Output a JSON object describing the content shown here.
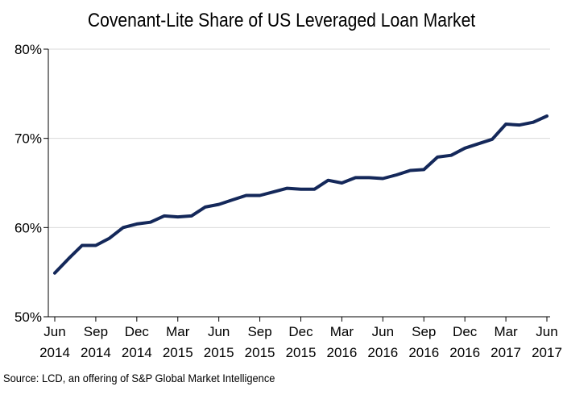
{
  "chart_data": {
    "type": "line",
    "title": "Covenant-Lite Share of US Leveraged Loan Market",
    "ylim": [
      50,
      80
    ],
    "y_ticks": [
      "50%",
      "60%",
      "70%",
      "80%"
    ],
    "y_tick_values": [
      50,
      60,
      70,
      80
    ],
    "grid": true,
    "x_tick_labels": [
      [
        "Jun",
        "2014"
      ],
      [
        "Sep",
        "2014"
      ],
      [
        "Dec",
        "2014"
      ],
      [
        "Mar",
        "2015"
      ],
      [
        "Jun",
        "2015"
      ],
      [
        "Sep",
        "2015"
      ],
      [
        "Dec",
        "2015"
      ],
      [
        "Mar",
        "2016"
      ],
      [
        "Jun",
        "2016"
      ],
      [
        "Sep",
        "2016"
      ],
      [
        "Dec",
        "2016"
      ],
      [
        "Mar",
        "2017"
      ],
      [
        "Jun",
        "2017"
      ]
    ],
    "line_color": "#14285a",
    "series": [
      {
        "x": [
          "2014-06",
          "2014-07",
          "2014-08",
          "2014-09",
          "2014-10",
          "2014-11",
          "2014-12",
          "2015-01",
          "2015-02",
          "2015-03",
          "2015-04",
          "2015-05",
          "2015-06",
          "2015-07",
          "2015-08",
          "2015-09",
          "2015-10",
          "2015-11",
          "2015-12",
          "2016-01",
          "2016-02",
          "2016-03",
          "2016-04",
          "2016-05",
          "2016-06",
          "2016-07",
          "2016-08",
          "2016-09",
          "2016-10",
          "2016-11",
          "2016-12",
          "2017-01",
          "2017-02",
          "2017-03",
          "2017-04",
          "2017-05",
          "2017-06"
        ],
        "values": [
          54.9,
          56.5,
          58.0,
          58.0,
          58.8,
          60.0,
          60.4,
          60.6,
          61.3,
          61.2,
          61.3,
          62.3,
          62.6,
          63.1,
          63.6,
          63.6,
          64.0,
          64.4,
          64.3,
          64.3,
          65.3,
          65.0,
          65.6,
          65.6,
          65.5,
          65.9,
          66.4,
          66.5,
          67.9,
          68.1,
          68.9,
          69.4,
          69.9,
          71.6,
          71.5,
          71.8,
          72.5
        ]
      }
    ]
  },
  "source_text": "Source: LCD, an offering of S&P Global Market Intelligence"
}
